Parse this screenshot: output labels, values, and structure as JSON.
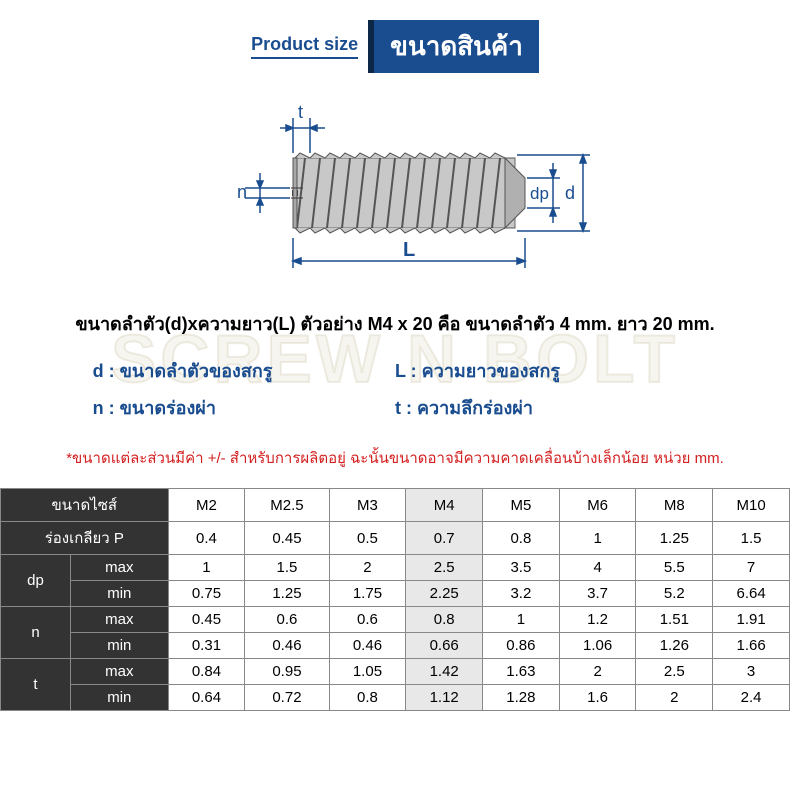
{
  "header": {
    "product_size_en": "Product size",
    "product_size_th": "ขนาดสินค้า"
  },
  "watermark": {
    "line1": "SCREW N BOLT",
    "line2": "S"
  },
  "diagram": {
    "labels": {
      "t": "t",
      "n": "n",
      "L": "L",
      "dp": "dp",
      "d": "d"
    },
    "colors": {
      "dimension_line": "#1a4d8f",
      "screw_fill": "#b8b8b8",
      "screw_stroke": "#555555"
    }
  },
  "description": "ขนาดลำตัว(d)xความยาว(L) ตัวอย่าง M4 x 20 คือ ขนาดลำตัว 4 mm. ยาว 20 mm.",
  "legend": {
    "d": "d : ขนาดลำตัวของสกรู",
    "L": "L : ความยาวของสกรู",
    "n": "n : ขนาดร่องผ่า",
    "t": "t : ความลึกร่องผ่า"
  },
  "note": "*ขนาดแต่ละส่วนมีค่า +/- สำหรับการผลิตอยู่ ฉะนั้นขนาดอาจมีความคาดเคลื่อนบ้างเล็กน้อย หน่วย mm.",
  "table": {
    "header_size": "ขนาดไซส์",
    "header_pitch": "ร่องเกลียว P",
    "sizes": [
      "M2",
      "M2.5",
      "M3",
      "M4",
      "M5",
      "M6",
      "M8",
      "M10"
    ],
    "highlight_col": 3,
    "pitch": [
      "0.4",
      "0.45",
      "0.5",
      "0.7",
      "0.8",
      "1",
      "1.25",
      "1.5"
    ],
    "groups": [
      {
        "label": "dp",
        "rows": [
          {
            "label": "max",
            "values": [
              "1",
              "1.5",
              "2",
              "2.5",
              "3.5",
              "4",
              "5.5",
              "7"
            ]
          },
          {
            "label": "min",
            "values": [
              "0.75",
              "1.25",
              "1.75",
              "2.25",
              "3.2",
              "3.7",
              "5.2",
              "6.64"
            ]
          }
        ]
      },
      {
        "label": "n",
        "rows": [
          {
            "label": "max",
            "values": [
              "0.45",
              "0.6",
              "0.6",
              "0.8",
              "1",
              "1.2",
              "1.51",
              "1.91"
            ]
          },
          {
            "label": "min",
            "values": [
              "0.31",
              "0.46",
              "0.46",
              "0.66",
              "0.86",
              "1.06",
              "1.26",
              "1.66"
            ]
          }
        ]
      },
      {
        "label": "t",
        "rows": [
          {
            "label": "max",
            "values": [
              "0.84",
              "0.95",
              "1.05",
              "1.42",
              "1.63",
              "2",
              "2.5",
              "3"
            ]
          },
          {
            "label": "min",
            "values": [
              "0.64",
              "0.72",
              "0.8",
              "1.12",
              "1.28",
              "1.6",
              "2",
              "2.4"
            ]
          }
        ]
      }
    ]
  }
}
